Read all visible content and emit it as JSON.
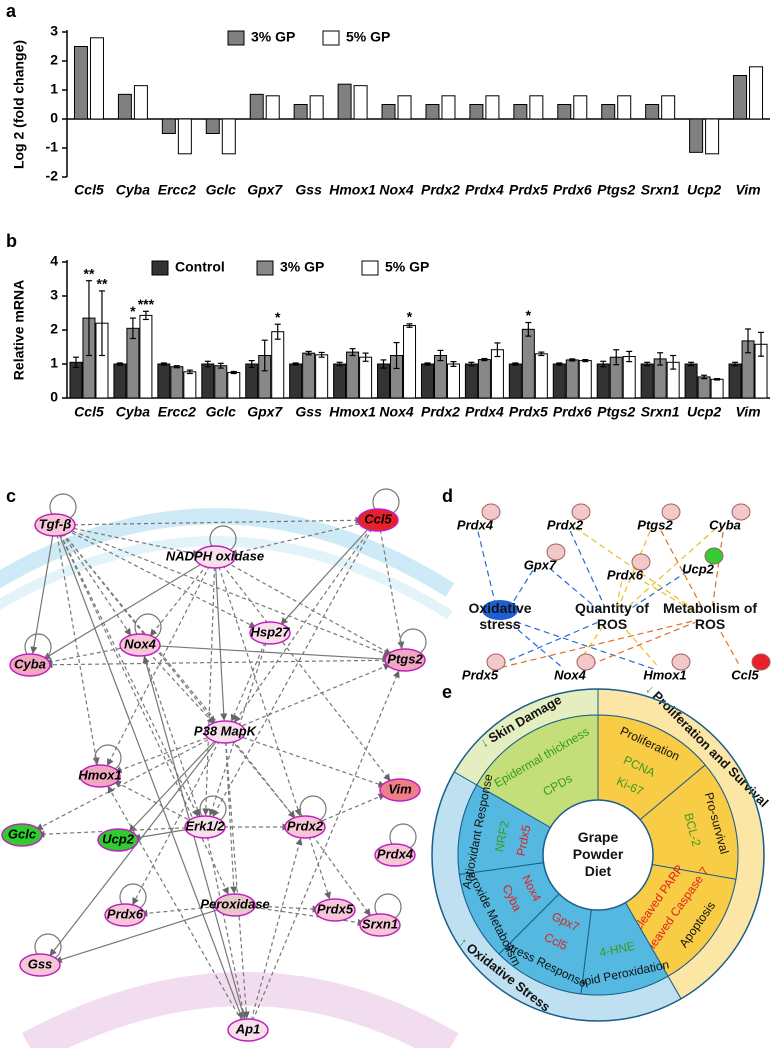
{
  "chart_data": [
    {
      "type": "bar",
      "label": "a",
      "ylabel": "Log 2 (fold change)",
      "categories": [
        "Ccl5",
        "Cyba",
        "Ercc2",
        "Gclc",
        "Gpx7",
        "Gss",
        "Hmox1",
        "Nox4",
        "Prdx2",
        "Prdx4",
        "Prdx5",
        "Prdx6",
        "Ptgs2",
        "Srxn1",
        "Ucp2",
        "Vim"
      ],
      "series": [
        {
          "name": "3% GP",
          "color": "#808080",
          "values": [
            2.5,
            0.85,
            -0.5,
            -0.5,
            0.85,
            0.5,
            1.2,
            0.5,
            0.5,
            0.5,
            0.5,
            0.5,
            0.5,
            0.5,
            -1.15,
            1.5
          ]
        },
        {
          "name": "5% GP",
          "color": "#ffffff",
          "values": [
            2.8,
            1.15,
            -1.2,
            -1.2,
            0.8,
            0.8,
            1.15,
            0.8,
            0.8,
            0.8,
            0.8,
            0.8,
            0.8,
            0.8,
            -1.2,
            1.8
          ]
        }
      ],
      "ylim": [
        -2,
        3
      ],
      "yticks": [
        -2,
        -1,
        0,
        1,
        2,
        3
      ],
      "legend": "upper center"
    },
    {
      "type": "bar",
      "label": "b",
      "ylabel": "Relative mRNA",
      "categories": [
        "Ccl5",
        "Cyba",
        "Ercc2",
        "Gclc",
        "Gpx7",
        "Gss",
        "Hmox1",
        "Nox4",
        "Prdx2",
        "Prdx4",
        "Prdx5",
        "Prdx6",
        "Ptgs2",
        "Srxn1",
        "Ucp2",
        "Vim"
      ],
      "series": [
        {
          "name": "Control",
          "color": "#333333",
          "values": [
            1.05,
            1.0,
            1.0,
            1.0,
            1.0,
            1.0,
            1.0,
            1.0,
            1.0,
            1.0,
            1.0,
            1.0,
            1.0,
            1.0,
            1.0,
            1.0
          ],
          "errors": [
            0.15,
            0.03,
            0.03,
            0.08,
            0.1,
            0.03,
            0.05,
            0.12,
            0.03,
            0.05,
            0.03,
            0.03,
            0.08,
            0.05,
            0.05,
            0.05
          ]
        },
        {
          "name": "3% GP",
          "color": "#888888",
          "values": [
            2.35,
            2.05,
            0.92,
            0.95,
            1.25,
            1.32,
            1.35,
            1.25,
            1.25,
            1.13,
            2.02,
            1.12,
            1.2,
            1.15,
            0.62,
            1.68
          ],
          "errors": [
            1.1,
            0.3,
            0.03,
            0.07,
            0.45,
            0.05,
            0.1,
            0.38,
            0.15,
            0.03,
            0.2,
            0.03,
            0.22,
            0.18,
            0.05,
            0.35
          ],
          "annotations": [
            "**",
            "*",
            null,
            null,
            null,
            null,
            null,
            null,
            null,
            null,
            "*",
            null,
            null,
            null,
            null,
            null
          ]
        },
        {
          "name": "5% GP",
          "color": "#ffffff",
          "values": [
            2.2,
            2.43,
            0.77,
            0.75,
            1.95,
            1.27,
            1.2,
            2.13,
            1.0,
            1.42,
            1.3,
            1.1,
            1.22,
            1.05,
            0.55,
            1.58
          ],
          "errors": [
            0.95,
            0.12,
            0.05,
            0.03,
            0.22,
            0.07,
            0.12,
            0.05,
            0.07,
            0.2,
            0.05,
            0.03,
            0.15,
            0.2,
            0.02,
            0.35
          ],
          "annotations": [
            "**",
            "***",
            null,
            null,
            "*",
            null,
            null,
            "*",
            null,
            null,
            null,
            null,
            null,
            null,
            null,
            null
          ]
        }
      ],
      "ylim": [
        0,
        4
      ],
      "yticks": [
        0,
        1,
        2,
        3,
        4
      ],
      "legend": "upper left"
    }
  ],
  "network_c": {
    "label": "c",
    "nodes": [
      {
        "label": "Tgf-β",
        "color": "#f6c6d6"
      },
      {
        "label": "Ccl5",
        "color": "#e8202a"
      },
      {
        "label": "NADPH oxidase",
        "color": "#f8e0ea"
      },
      {
        "label": "Nox4",
        "color": "#f6c6d6"
      },
      {
        "label": "Hsp27",
        "color": "#f8e0ea"
      },
      {
        "label": "Cyba",
        "color": "#f0a8c0"
      },
      {
        "label": "Ptgs2",
        "color": "#f0a8c0"
      },
      {
        "label": "P38 MapK",
        "color": "#f8e0ea"
      },
      {
        "label": "Hmox1",
        "color": "#f0a8c0"
      },
      {
        "label": "Vim",
        "color": "#ee7f86"
      },
      {
        "label": "Gclc",
        "color": "#2ecc2e"
      },
      {
        "label": "Ucp2",
        "color": "#2ecc2e"
      },
      {
        "label": "Erk1/2",
        "color": "#f8e0ea"
      },
      {
        "label": "Prdx2",
        "color": "#f6c6d6"
      },
      {
        "label": "Prdx4",
        "color": "#f6c6d6"
      },
      {
        "label": "Peroxidase",
        "color": "#e6c8c8"
      },
      {
        "label": "Gss",
        "color": "#f6c6d6"
      },
      {
        "label": "Prdx6",
        "color": "#f6c6d6"
      },
      {
        "label": "Prdx5",
        "color": "#f6c6d6"
      },
      {
        "label": "Srxn1",
        "color": "#f6c6d6"
      },
      {
        "label": "Ap1",
        "color": "#f8e0ea"
      }
    ]
  },
  "network_d": {
    "label": "d",
    "nodes": [
      {
        "label": "Prdx4",
        "color": "#f2c8c8"
      },
      {
        "label": "Prdx2",
        "color": "#f2c8c8"
      },
      {
        "label": "Ptgs2",
        "color": "#f2c8c8"
      },
      {
        "label": "Cyba",
        "color": "#f2c8c8"
      },
      {
        "label": "Gpx7",
        "color": "#f2c8c8"
      },
      {
        "label": "Prdx6",
        "color": "#f2c8c8"
      },
      {
        "label": "Ucp2",
        "color": "#33cc33"
      },
      {
        "label": "Oxidative stress",
        "color": "#1f5fd6"
      },
      {
        "label": "Quantity of ROS",
        "color": "#ffffff"
      },
      {
        "label": "Metabolism of ROS",
        "color": "#ffffff"
      },
      {
        "label": "Prdx5",
        "color": "#f2c8c8"
      },
      {
        "label": "Nox4",
        "color": "#f2c8c8"
      },
      {
        "label": "Hmox1",
        "color": "#f2c8c8"
      },
      {
        "label": "Ccl5",
        "color": "#e8202a"
      }
    ]
  },
  "wheel_e": {
    "label": "e",
    "center": "Grape Powder Diet",
    "groups": [
      {
        "name": "Skin Damage",
        "arrow": "↓",
        "subgroups": [
          {
            "items": [
              {
                "text": "Epidermal thickness",
                "color": "#3a9a20"
              },
              {
                "text": "CPDs",
                "color": "#3a9a20"
              }
            ]
          }
        ]
      },
      {
        "name": "Proliferation and Survival",
        "arrow": "↓",
        "subgroups": [
          {
            "name": "Proliferation",
            "items": [
              {
                "text": "PCNA",
                "color": "#3a9a20"
              },
              {
                "text": "Ki-67",
                "color": "#3a9a20"
              }
            ]
          },
          {
            "name": "Pro-survival",
            "items": [
              {
                "text": "BCL-2",
                "color": "#3a9a20"
              }
            ]
          },
          {
            "name": "Apoptosis",
            "items": [
              {
                "text": "cleaved Caspase 7",
                "color": "#e02020"
              },
              {
                "text": "cleaved PARP",
                "color": "#e02020"
              }
            ]
          }
        ]
      },
      {
        "name": "Oxidative Stress",
        "arrow": "↑",
        "subgroups": [
          {
            "name": "Lipid Peroxidation",
            "items": [
              {
                "text": "4-HNE",
                "color": "#3a9a20"
              }
            ]
          },
          {
            "name": "Stress Response",
            "items": [
              {
                "text": "Ccl5",
                "color": "#e02020"
              },
              {
                "text": "Gpx7",
                "color": "#e02020"
              }
            ]
          },
          {
            "name": "Superoxide Metabolism",
            "items": [
              {
                "text": "Cyba",
                "color": "#e02020"
              },
              {
                "text": "Nox4",
                "color": "#e02020"
              }
            ]
          },
          {
            "name": "Antioxidant Response",
            "items": [
              {
                "text": "NRF2",
                "color": "#3a9a20"
              },
              {
                "text": "Prdx5",
                "color": "#e02020"
              }
            ]
          }
        ]
      }
    ]
  }
}
